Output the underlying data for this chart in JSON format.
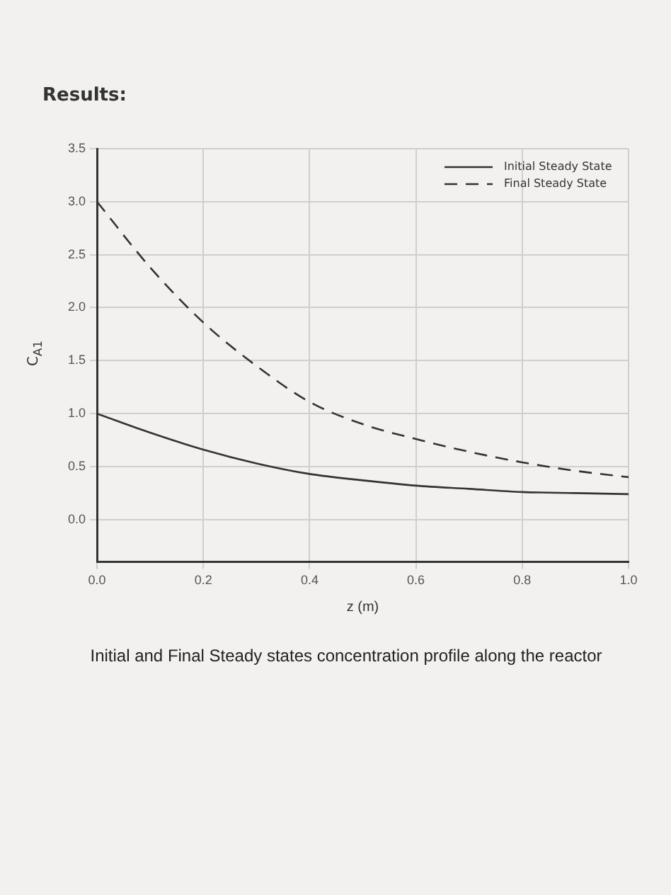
{
  "chart_data": {
    "type": "line",
    "title": "Initial and Final Steady states concentration profile along the reactor",
    "xlabel": "z (m)",
    "ylabel": "C$_{A1}$",
    "annotations": [
      "Results:"
    ],
    "x": [
      0,
      0.1,
      0.2,
      0.3,
      0.4,
      0.5,
      0.6,
      0.7,
      0.8,
      0.9,
      1.0
    ],
    "series": [
      {
        "name": "Initial Steady State",
        "color": "#333333",
        "line_style": "solid",
        "values": [
          1.0,
          0.82,
          0.66,
          0.53,
          0.43,
          0.37,
          0.32,
          0.29,
          0.26,
          0.25,
          0.24
        ]
      },
      {
        "name": "Final Steady State",
        "color": "#333333",
        "line_style": "dashed",
        "values": [
          3.0,
          2.38,
          1.86,
          1.45,
          1.11,
          0.9,
          0.76,
          0.64,
          0.54,
          0.46,
          0.4
        ]
      }
    ],
    "xlim": [
      0,
      1
    ],
    "xticks": [
      {
        "value": 0,
        "label": "0.0"
      },
      {
        "value": 0.2,
        "label": "0.2"
      },
      {
        "value": 0.4,
        "label": "0.4"
      },
      {
        "value": 0.6,
        "label": "0.6"
      },
      {
        "value": 0.8,
        "label": "0.8"
      },
      {
        "value": 1,
        "label": "1.0"
      }
    ],
    "ylim": [
      -0.4,
      3.5
    ],
    "yticks": [
      {
        "value": 0,
        "label": "0.0"
      },
      {
        "value": 0.5,
        "label": "0.5"
      },
      {
        "value": 1,
        "label": "1.0"
      },
      {
        "value": 1.5,
        "label": "1.5"
      },
      {
        "value": 2,
        "label": "2.0"
      },
      {
        "value": 2.5,
        "label": "2.5"
      },
      {
        "value": 3,
        "label": "3.0"
      },
      {
        "value": 3.5,
        "label": "3.5"
      }
    ],
    "grid": true,
    "legend": "top right",
    "marker": "none"
  }
}
